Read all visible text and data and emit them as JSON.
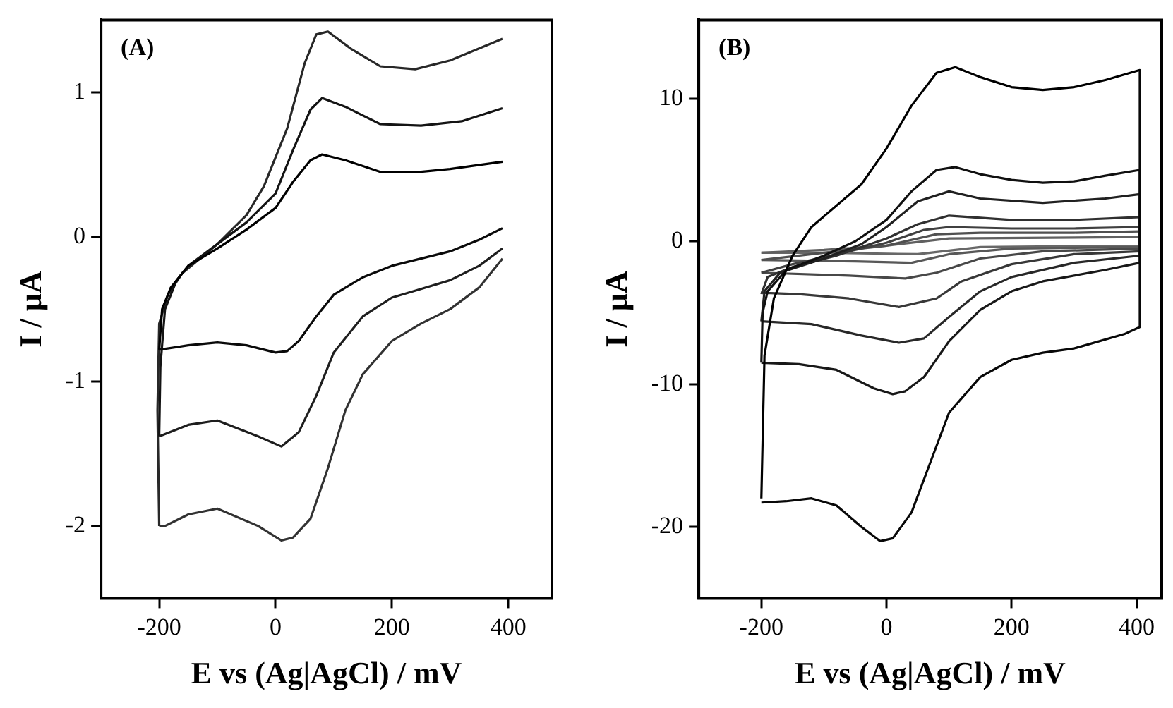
{
  "chart_data": [
    {
      "type": "line",
      "annotations": [
        "(A)"
      ],
      "xlabel": "E vs (Ag|AgCl) / mV",
      "ylabel": "I / µA",
      "xlim": [
        -300,
        475
      ],
      "ylim": [
        -2.5,
        1.5
      ],
      "xticks": [
        -200,
        0,
        200,
        400
      ],
      "yticks": [
        -2,
        -1,
        0,
        1
      ],
      "grid": false,
      "legend": false,
      "marker": "none",
      "line_style": "solid",
      "series": [
        {
          "color": "#000000",
          "x": [
            -200,
            -195,
            -180,
            -150,
            -100,
            -50,
            0,
            30,
            60,
            80,
            120,
            180,
            250,
            300,
            390
          ],
          "values": [
            -0.78,
            -0.5,
            -0.35,
            -0.2,
            -0.08,
            0.05,
            0.2,
            0.38,
            0.53,
            0.57,
            0.53,
            0.45,
            0.45,
            0.47,
            0.52
          ]
        },
        {
          "color": "#0a0a0a",
          "x": [
            390,
            350,
            300,
            250,
            200,
            150,
            100,
            70,
            40,
            20,
            0,
            -50,
            -100,
            -150,
            -200
          ],
          "values": [
            0.06,
            -0.02,
            -0.1,
            -0.15,
            -0.2,
            -0.28,
            -0.4,
            -0.55,
            -0.72,
            -0.79,
            -0.8,
            -0.75,
            -0.73,
            -0.75,
            -0.78
          ]
        },
        {
          "color": "#141414",
          "x": [
            -200,
            -198,
            -190,
            -170,
            -150,
            -100,
            -50,
            0,
            30,
            60,
            80,
            120,
            180,
            250,
            320,
            390
          ],
          "values": [
            -1.38,
            -0.9,
            -0.5,
            -0.3,
            -0.2,
            -0.05,
            0.1,
            0.3,
            0.6,
            0.88,
            0.96,
            0.9,
            0.78,
            0.77,
            0.8,
            0.89
          ]
        },
        {
          "color": "#1e1e1e",
          "x": [
            390,
            350,
            300,
            250,
            200,
            150,
            100,
            70,
            40,
            10,
            -30,
            -100,
            -150,
            -200
          ],
          "values": [
            -0.08,
            -0.2,
            -0.3,
            -0.36,
            -0.42,
            -0.55,
            -0.8,
            -1.1,
            -1.35,
            -1.45,
            -1.38,
            -1.27,
            -1.3,
            -1.38
          ]
        },
        {
          "color": "#282828",
          "x": [
            -200,
            -203,
            -200,
            -185,
            -160,
            -130,
            -100,
            -50,
            -20,
            20,
            50,
            70,
            90,
            130,
            180,
            240,
            300,
            390
          ],
          "values": [
            -2.0,
            -1.2,
            -0.6,
            -0.4,
            -0.25,
            -0.15,
            -0.05,
            0.15,
            0.35,
            0.75,
            1.2,
            1.4,
            1.42,
            1.3,
            1.18,
            1.16,
            1.22,
            1.37
          ]
        },
        {
          "color": "#323232",
          "x": [
            390,
            350,
            300,
            250,
            200,
            150,
            120,
            90,
            60,
            30,
            10,
            -30,
            -100,
            -150,
            -190,
            -200
          ],
          "values": [
            -0.15,
            -0.35,
            -0.5,
            -0.6,
            -0.72,
            -0.95,
            -1.2,
            -1.6,
            -1.95,
            -2.08,
            -2.1,
            -2.0,
            -1.88,
            -1.92,
            -2.0,
            -2.0
          ]
        }
      ]
    },
    {
      "type": "line",
      "annotations": [
        "(B)"
      ],
      "xlabel": "E vs (Ag|AgCl) / mV",
      "ylabel": "I / µA",
      "xlim": [
        -300,
        440
      ],
      "ylim": [
        -25,
        15.5
      ],
      "xticks": [
        -200,
        0,
        200,
        400
      ],
      "yticks": [
        -20,
        -10,
        0,
        10
      ],
      "grid": false,
      "legend": false,
      "marker": "none",
      "line_style": "solid",
      "series": [
        {
          "color": "#000000",
          "x": [
            -200,
            -195,
            -180,
            -150,
            -120,
            -80,
            -40,
            0,
            40,
            80,
            110,
            150,
            200,
            250,
            300,
            350,
            405
          ],
          "values": [
            -18,
            -8,
            -4,
            -1,
            1,
            2.5,
            4,
            6.5,
            9.5,
            11.8,
            12.2,
            11.5,
            10.8,
            10.6,
            10.8,
            11.3,
            12
          ]
        },
        {
          "color": "#080808",
          "x": [
            405,
            405,
            380,
            300,
            250,
            200,
            150,
            100,
            70,
            40,
            10,
            -10,
            -40,
            -80,
            -120,
            -160,
            -200
          ],
          "values": [
            12,
            -6,
            -6.5,
            -7.5,
            -7.8,
            -8.3,
            -9.5,
            -12,
            -15.5,
            -19,
            -20.8,
            -21,
            -20,
            -18.5,
            -18,
            -18.2,
            -18.3
          ]
        },
        {
          "color": "#101010",
          "x": [
            -200,
            -198,
            -190,
            -160,
            -100,
            -50,
            0,
            40,
            80,
            110,
            150,
            200,
            250,
            300,
            350,
            405
          ],
          "values": [
            -8.5,
            -5,
            -3.5,
            -2,
            -1,
            0,
            1.5,
            3.5,
            5,
            5.2,
            4.7,
            4.3,
            4.1,
            4.2,
            4.6,
            5
          ]
        },
        {
          "color": "#181818",
          "x": [
            405,
            405,
            350,
            250,
            200,
            150,
            100,
            60,
            30,
            10,
            -20,
            -80,
            -140,
            -200
          ],
          "values": [
            5,
            -1.5,
            -2,
            -2.8,
            -3.5,
            -4.8,
            -7,
            -9.5,
            -10.5,
            -10.7,
            -10.3,
            -9,
            -8.6,
            -8.5
          ]
        },
        {
          "color": "#202020",
          "x": [
            -200,
            -195,
            -170,
            -100,
            -40,
            0,
            50,
            100,
            150,
            250,
            350,
            405
          ],
          "values": [
            -5.6,
            -3.5,
            -2.2,
            -1.2,
            -0.2,
            1,
            2.8,
            3.5,
            3,
            2.7,
            3,
            3.3
          ]
        },
        {
          "color": "#282828",
          "x": [
            405,
            405,
            300,
            200,
            150,
            100,
            60,
            20,
            -40,
            -120,
            -200
          ],
          "values": [
            3.3,
            -1,
            -1.5,
            -2.5,
            -3.5,
            -5.3,
            -6.8,
            -7.1,
            -6.6,
            -5.8,
            -5.6
          ]
        },
        {
          "color": "#303030",
          "x": [
            -200,
            -190,
            -150,
            -80,
            0,
            50,
            100,
            200,
            300,
            405
          ],
          "values": [
            -3.7,
            -2.5,
            -1.8,
            -1,
            0.2,
            1.2,
            1.8,
            1.5,
            1.5,
            1.7
          ]
        },
        {
          "color": "#383838",
          "x": [
            405,
            405,
            300,
            200,
            120,
            80,
            20,
            -60,
            -140,
            -200
          ],
          "values": [
            1.7,
            -0.7,
            -0.9,
            -1.6,
            -2.8,
            -4,
            -4.6,
            -4,
            -3.7,
            -3.6
          ]
        },
        {
          "color": "#404040",
          "x": [
            -200,
            -150,
            -80,
            0,
            60,
            100,
            200,
            300,
            405
          ],
          "values": [
            -2.2,
            -1.6,
            -0.9,
            -0.1,
            0.8,
            1,
            0.9,
            0.9,
            1
          ]
        },
        {
          "color": "#484848",
          "x": [
            405,
            405,
            250,
            150,
            80,
            30,
            -60,
            -200
          ],
          "values": [
            1,
            -0.5,
            -0.7,
            -1.2,
            -2.2,
            -2.6,
            -2.4,
            -2.2
          ]
        },
        {
          "color": "#505050",
          "x": [
            -200,
            -100,
            0,
            80,
            150,
            300,
            405
          ],
          "values": [
            -1.3,
            -0.8,
            -0.3,
            0.5,
            0.6,
            0.6,
            0.7
          ]
        },
        {
          "color": "#585858",
          "x": [
            405,
            405,
            200,
            100,
            40,
            -50,
            -200
          ],
          "values": [
            0.7,
            -0.4,
            -0.5,
            -0.9,
            -1.5,
            -1.4,
            -1.3
          ]
        },
        {
          "color": "#606060",
          "x": [
            -200,
            -100,
            0,
            100,
            405
          ],
          "values": [
            -0.8,
            -0.6,
            -0.3,
            0.2,
            0.3
          ]
        },
        {
          "color": "#686868",
          "x": [
            405,
            405,
            150,
            50,
            -100,
            -200
          ],
          "values": [
            0.3,
            -0.3,
            -0.4,
            -0.9,
            -0.8,
            -0.8
          ]
        }
      ]
    }
  ]
}
